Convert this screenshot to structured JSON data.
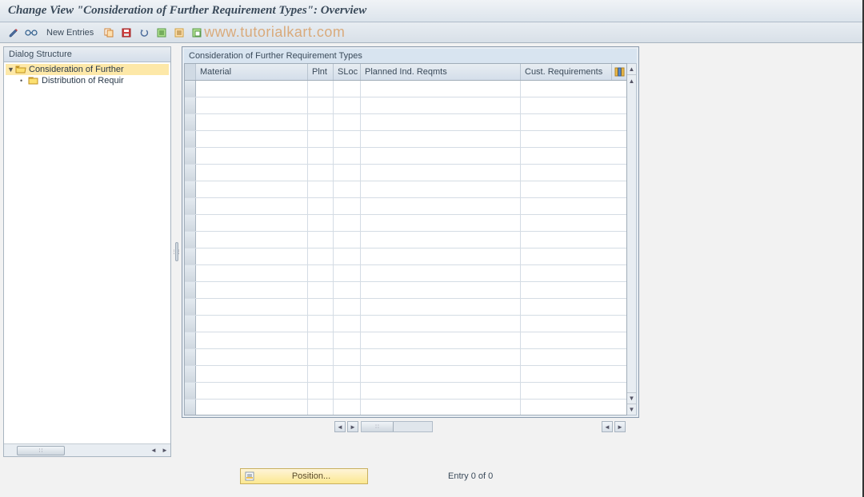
{
  "title": "Change View \"Consideration of Further Requirement Types\": Overview",
  "toolbar": {
    "new_entries_label": "New Entries"
  },
  "watermark": "www.tutorialkart.com",
  "tree": {
    "header": "Dialog Structure",
    "items": [
      {
        "label": "Consideration of Further",
        "level": 0,
        "open": true,
        "selected": true
      },
      {
        "label": "Distribution of Requir",
        "level": 1,
        "open": false,
        "selected": false
      }
    ]
  },
  "table": {
    "title": "Consideration of Further Requirement Types",
    "columns": {
      "material": "Material",
      "plnt": "Plnt",
      "sloc": "SLoc",
      "pir": "Planned Ind. Reqmts",
      "cust": "Cust. Requirements"
    },
    "row_count": 20
  },
  "footer": {
    "position_label": "Position...",
    "entry_text": "Entry 0 of 0"
  },
  "colors": {
    "title_bg": "#e4eaf0",
    "accent": "#fce890",
    "border": "#a0acb8"
  }
}
